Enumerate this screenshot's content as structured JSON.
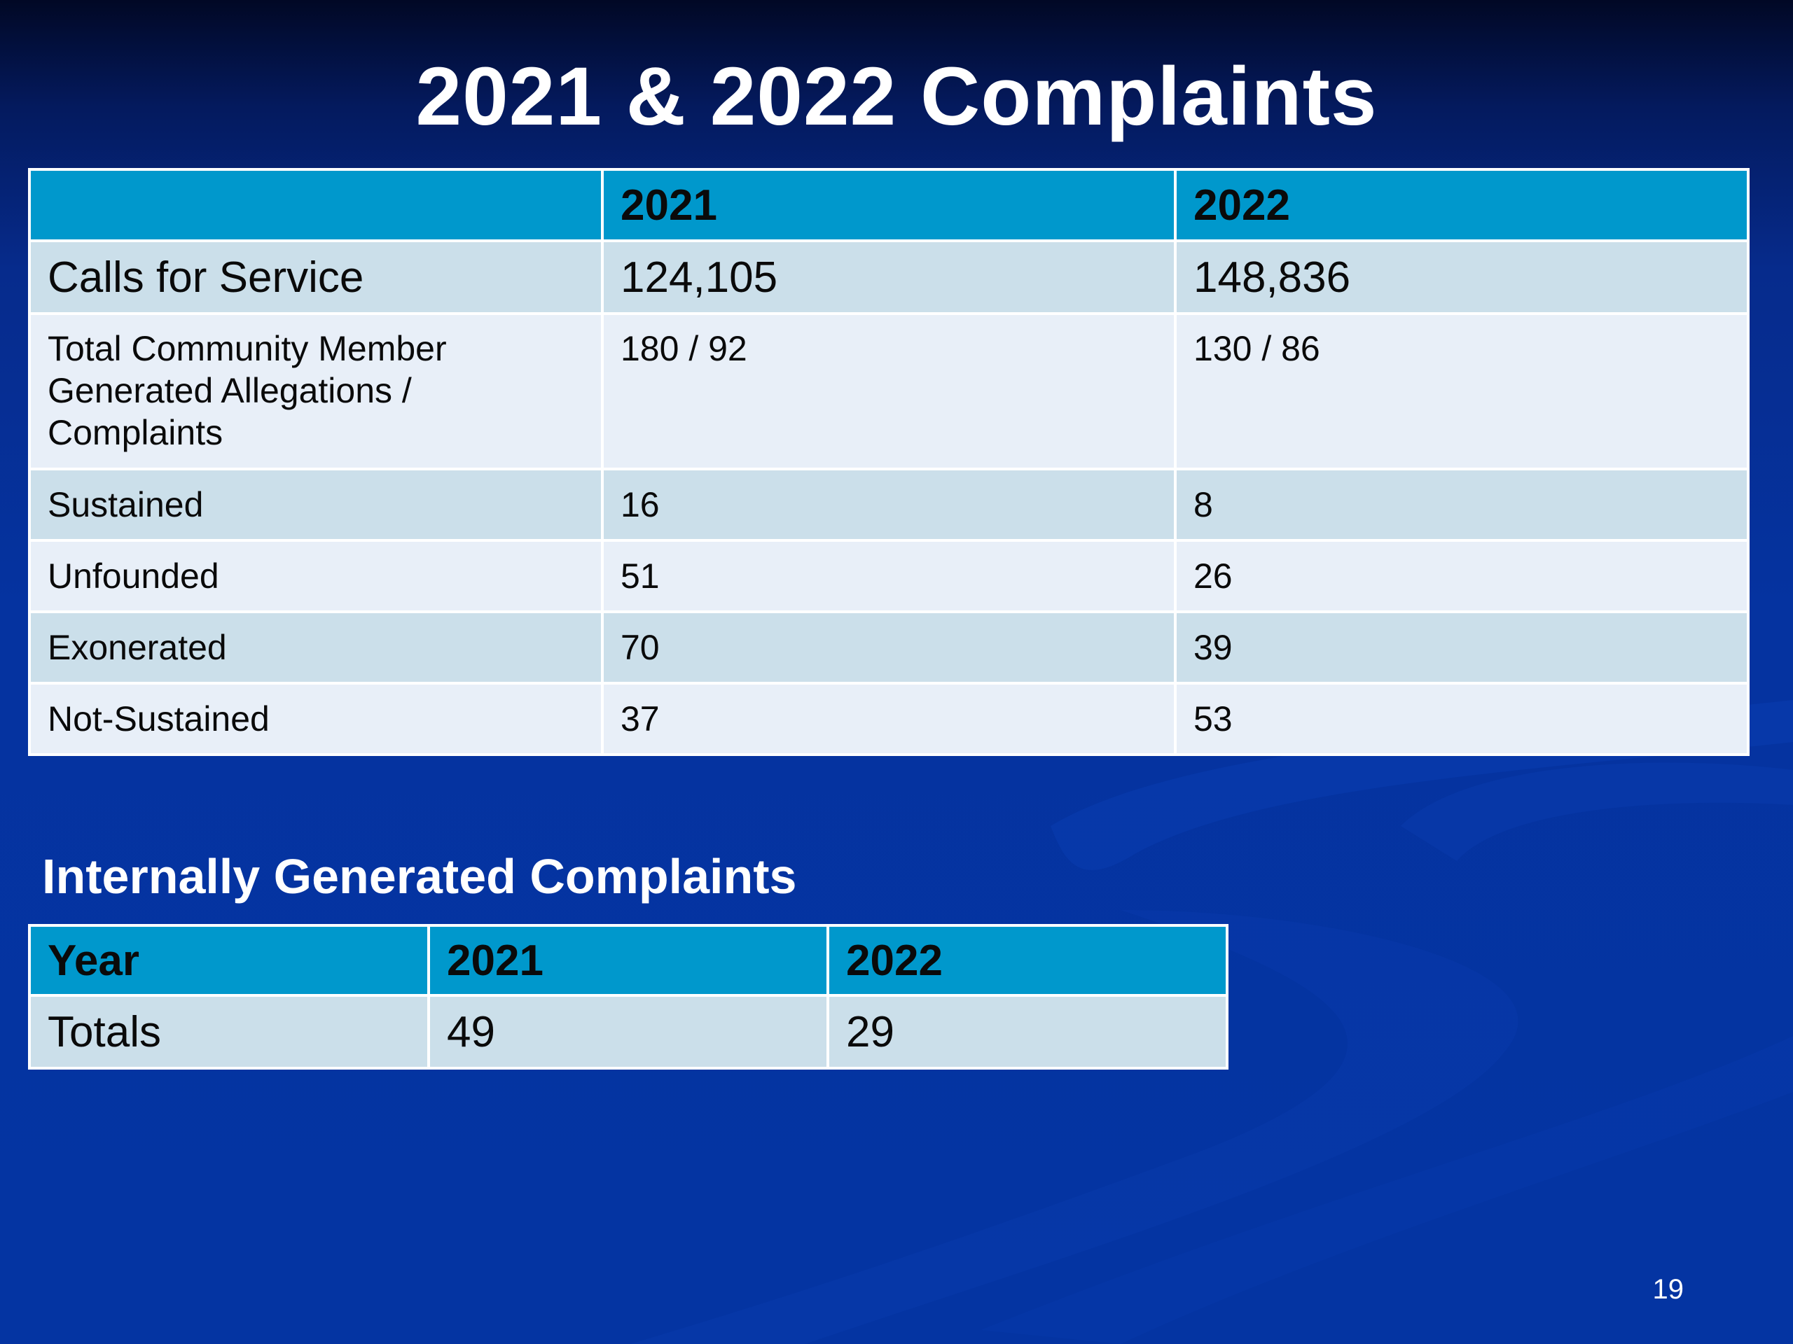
{
  "title": "2021 & 2022 Complaints",
  "main_table": {
    "headers": [
      "",
      "2021",
      "2022"
    ],
    "rows": [
      [
        "Calls for Service",
        "124,105",
        "148,836"
      ],
      [
        "Total Community Member Generated Allegations / Complaints",
        "180 / 92",
        "130 / 86"
      ],
      [
        "Sustained",
        "16",
        "8"
      ],
      [
        "Unfounded",
        "51",
        "26"
      ],
      [
        "Exonerated",
        "70",
        "39"
      ],
      [
        "Not-Sustained",
        "37",
        "53"
      ]
    ]
  },
  "internal": {
    "title": "Internally Generated Complaints",
    "headers": [
      "Year",
      "2021",
      "2022"
    ],
    "rows": [
      [
        "Totals",
        "49",
        "29"
      ]
    ]
  },
  "page_number": "19",
  "colors": {
    "header_bg": "#0098cc",
    "row_dark": "#cbdfea",
    "row_light": "#e8eff8",
    "background": "#0434a2"
  }
}
